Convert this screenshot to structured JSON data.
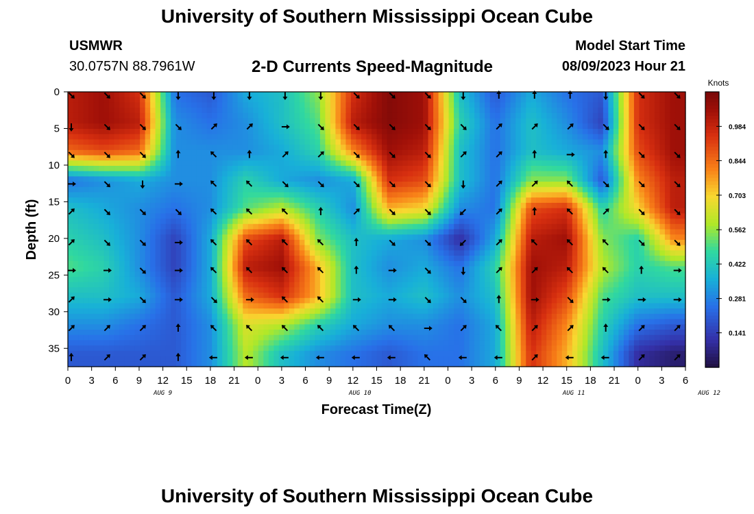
{
  "page": {
    "title": "University of Southern Mississippi Ocean Cube",
    "station": "USMWR",
    "coordinates": "30.0757N  88.7961W",
    "subtitle": "2-D Currents Speed-Magnitude",
    "model_start_label": "Model Start Time",
    "model_start_value": "08/09/2023 Hour 21",
    "footer_title": "University of Southern Mississippi Ocean Cube"
  },
  "chart_data": {
    "type": "heatmap",
    "title": "2-D Currents Speed-Magnitude",
    "xlabel": "Forecast Time(Z)",
    "ylabel": "Depth (ft)",
    "x_tick_labels": [
      "0",
      "3",
      "6",
      "9",
      "12",
      "15",
      "18",
      "21",
      "0",
      "3",
      "6",
      "9",
      "12",
      "15",
      "18",
      "21",
      "0",
      "3",
      "6",
      "9",
      "12",
      "15",
      "18",
      "21",
      "0",
      "3",
      "6"
    ],
    "day_labels": [
      {
        "label": "AUG 9",
        "hour_index": 4
      },
      {
        "label": "AUG 10",
        "hour_index": 12.3
      },
      {
        "label": "AUG 11",
        "hour_index": 21.3
      },
      {
        "label": "AUG 12",
        "hour_index": 27
      }
    ],
    "x_range_hours": [
      0,
      78
    ],
    "y_tick_labels": [
      "0",
      "5",
      "10",
      "15",
      "20",
      "25",
      "30",
      "35"
    ],
    "y_range_ft": [
      0,
      37.5
    ],
    "colorbar": {
      "unit": "Knots",
      "range": [
        0,
        1.125
      ],
      "tick_labels": [
        "0.984",
        "0.844",
        "0.703",
        "0.562",
        "0.422",
        "0.281",
        "0.141"
      ],
      "tick_values": [
        0.984,
        0.844,
        0.703,
        0.562,
        0.422,
        0.281,
        0.141
      ]
    },
    "speed_field_knots": {
      "arrow_time_hours": [
        0,
        4.5,
        9,
        13.5,
        18,
        22.5,
        27,
        31.5,
        36,
        40.5,
        45,
        49.5,
        54,
        58.5,
        63,
        67.5,
        72,
        76.5
      ],
      "arrow_depth_ft": [
        0,
        4.3,
        8.1,
        12.1,
        15.9,
        20.1,
        23.9,
        27.9,
        31.8,
        35.8
      ],
      "values": [
        [
          1.0,
          1.05,
          0.95,
          0.25,
          0.2,
          0.35,
          0.4,
          0.55,
          0.95,
          1.1,
          1.05,
          0.4,
          0.2,
          0.35,
          0.25,
          0.2,
          0.95,
          1.05
        ],
        [
          1.0,
          1.05,
          1.0,
          0.3,
          0.25,
          0.3,
          0.4,
          0.5,
          1.0,
          1.1,
          1.05,
          0.45,
          0.25,
          0.4,
          0.3,
          0.15,
          0.95,
          1.05
        ],
        [
          0.85,
          0.9,
          0.85,
          0.3,
          0.3,
          0.3,
          0.35,
          0.45,
          0.8,
          1.05,
          1.0,
          0.4,
          0.25,
          0.4,
          0.35,
          0.3,
          0.9,
          1.05
        ],
        [
          0.25,
          0.3,
          0.35,
          0.3,
          0.3,
          0.45,
          0.35,
          0.3,
          0.35,
          0.95,
          0.9,
          0.4,
          0.25,
          0.55,
          0.55,
          0.2,
          0.8,
          1.0
        ],
        [
          0.4,
          0.35,
          0.3,
          0.25,
          0.3,
          0.5,
          0.6,
          0.45,
          0.3,
          0.75,
          0.7,
          0.3,
          0.25,
          0.9,
          0.95,
          0.45,
          0.7,
          1.0
        ],
        [
          0.45,
          0.4,
          0.3,
          0.15,
          0.35,
          0.9,
          1.0,
          0.55,
          0.4,
          0.35,
          0.3,
          0.1,
          0.35,
          1.0,
          1.05,
          0.55,
          0.45,
          0.8
        ],
        [
          0.5,
          0.45,
          0.3,
          0.15,
          0.35,
          1.0,
          1.05,
          0.75,
          0.4,
          0.3,
          0.35,
          0.25,
          0.45,
          1.05,
          1.0,
          0.6,
          0.45,
          0.5
        ],
        [
          0.4,
          0.4,
          0.35,
          0.2,
          0.35,
          0.85,
          0.95,
          0.75,
          0.4,
          0.35,
          0.4,
          0.3,
          0.4,
          1.05,
          0.9,
          0.5,
          0.4,
          0.4
        ],
        [
          0.3,
          0.3,
          0.25,
          0.2,
          0.3,
          0.65,
          0.6,
          0.45,
          0.35,
          0.3,
          0.3,
          0.25,
          0.35,
          1.0,
          0.8,
          0.45,
          0.25,
          0.2
        ],
        [
          0.2,
          0.2,
          0.2,
          0.2,
          0.3,
          0.6,
          0.4,
          0.3,
          0.25,
          0.2,
          0.25,
          0.25,
          0.35,
          0.95,
          0.75,
          0.4,
          0.1,
          0.05
        ]
      ]
    },
    "arrow_directions_deg": [
      [
        135,
        135,
        135,
        180,
        180,
        180,
        180,
        180,
        135,
        135,
        135,
        180,
        0,
        0,
        0,
        180,
        135,
        135
      ],
      [
        180,
        135,
        135,
        135,
        45,
        45,
        90,
        135,
        135,
        135,
        135,
        135,
        45,
        45,
        45,
        135,
        135,
        135
      ],
      [
        135,
        135,
        135,
        0,
        315,
        0,
        45,
        45,
        135,
        135,
        135,
        45,
        45,
        0,
        90,
        0,
        135,
        135
      ],
      [
        90,
        135,
        180,
        90,
        315,
        315,
        135,
        135,
        135,
        135,
        135,
        180,
        45,
        45,
        315,
        135,
        135,
        135
      ],
      [
        45,
        135,
        135,
        135,
        315,
        315,
        315,
        0,
        45,
        135,
        135,
        225,
        45,
        0,
        315,
        45,
        135,
        135
      ],
      [
        45,
        135,
        135,
        90,
        315,
        315,
        315,
        315,
        0,
        135,
        135,
        225,
        45,
        315,
        315,
        315,
        135,
        135
      ],
      [
        90,
        90,
        135,
        90,
        315,
        315,
        315,
        315,
        0,
        90,
        135,
        180,
        45,
        45,
        315,
        315,
        0,
        90
      ],
      [
        45,
        90,
        135,
        90,
        135,
        90,
        315,
        315,
        90,
        90,
        135,
        135,
        0,
        90,
        135,
        90,
        90,
        90
      ],
      [
        45,
        45,
        45,
        0,
        315,
        315,
        315,
        315,
        315,
        315,
        90,
        45,
        315,
        45,
        45,
        0,
        45,
        45
      ],
      [
        0,
        45,
        45,
        0,
        270,
        270,
        270,
        270,
        270,
        270,
        315,
        270,
        270,
        45,
        270,
        270,
        45,
        45
      ]
    ]
  }
}
